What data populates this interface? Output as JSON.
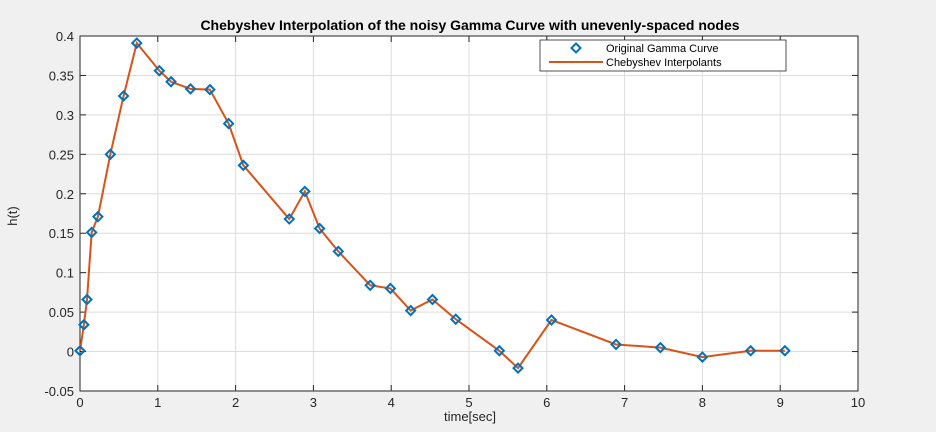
{
  "chart_data": {
    "type": "line",
    "title": "Chebyshev Interpolation of the noisy Gamma Curve with unevenly-spaced nodes",
    "xlabel": "time[sec]",
    "ylabel": "h(t)",
    "xlim": [
      0,
      10
    ],
    "ylim": [
      -0.05,
      0.4
    ],
    "xticks": [
      0,
      1,
      2,
      3,
      4,
      5,
      6,
      7,
      8,
      9,
      10
    ],
    "yticks": [
      -0.05,
      0,
      0.05,
      0.1,
      0.15,
      0.2,
      0.25,
      0.3,
      0.35,
      0.4
    ],
    "ytick_labels": [
      "-0.05",
      "0",
      "0.05",
      "0.1",
      "0.15",
      "0.2",
      "0.25",
      "0.3",
      "0.35",
      "0.4"
    ],
    "grid": true,
    "legend_position": "top-right",
    "series": [
      {
        "name": "Original Gamma Curve",
        "marker": "diamond",
        "color": "#0072BD",
        "x": [
          0.0,
          0.05,
          0.09,
          0.15,
          0.23,
          0.39,
          0.56,
          0.73,
          1.02,
          1.17,
          1.42,
          1.67,
          1.91,
          2.1,
          2.69,
          2.89,
          3.08,
          3.32,
          3.73,
          3.99,
          4.25,
          4.53,
          4.83,
          5.39,
          5.63,
          6.06,
          6.89,
          7.46,
          8.0,
          8.62,
          9.06
        ],
        "y": [
          0.001,
          0.034,
          0.066,
          0.151,
          0.171,
          0.25,
          0.324,
          0.391,
          0.356,
          0.342,
          0.333,
          0.332,
          0.289,
          0.236,
          0.168,
          0.203,
          0.156,
          0.127,
          0.084,
          0.08,
          0.052,
          0.066,
          0.041,
          0.001,
          -0.021,
          0.04,
          0.009,
          0.005,
          -0.007,
          0.001,
          0.001
        ]
      },
      {
        "name": "Chebyshev Interpolants",
        "marker": "none",
        "color": "#D95319",
        "x": [
          0.0,
          0.05,
          0.09,
          0.15,
          0.23,
          0.39,
          0.56,
          0.73,
          1.02,
          1.17,
          1.42,
          1.67,
          1.91,
          2.1,
          2.69,
          2.89,
          3.08,
          3.32,
          3.73,
          3.99,
          4.25,
          4.53,
          4.83,
          5.39,
          5.63,
          6.06,
          6.89,
          7.46,
          8.0,
          8.62,
          9.06
        ],
        "y": [
          0.001,
          0.034,
          0.066,
          0.151,
          0.171,
          0.25,
          0.324,
          0.391,
          0.356,
          0.342,
          0.333,
          0.332,
          0.289,
          0.236,
          0.168,
          0.203,
          0.156,
          0.127,
          0.084,
          0.08,
          0.052,
          0.066,
          0.041,
          0.001,
          -0.021,
          0.04,
          0.009,
          0.005,
          -0.007,
          0.001,
          0.001
        ]
      }
    ]
  }
}
